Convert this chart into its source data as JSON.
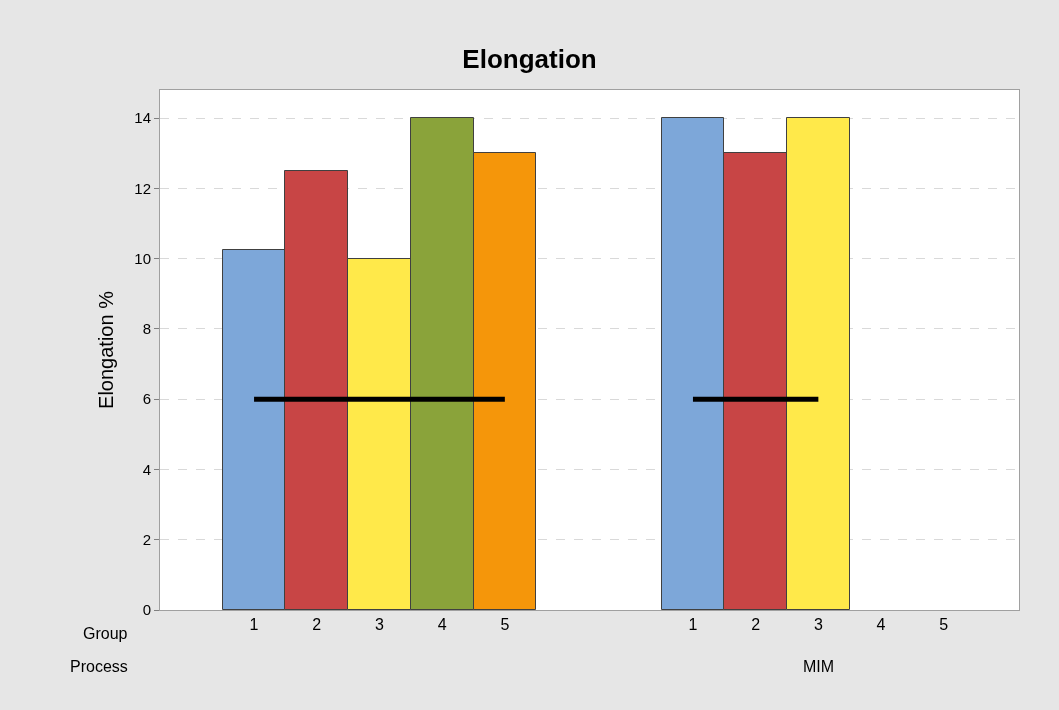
{
  "chart_data": {
    "type": "bar",
    "title": "Elongation",
    "ylabel": "Elongation %",
    "categories": [
      "1",
      "2",
      "3",
      "4",
      "5",
      null,
      null,
      "1",
      "2",
      "3",
      "4",
      "5"
    ],
    "series": [
      {
        "colors": [
          "#7da7d9",
          "#c84545",
          "#ffe94a",
          "#8aa33a",
          "#f5960a",
          null,
          null,
          "#7da7d9",
          "#c84545",
          "#ffe94a",
          null,
          null
        ],
        "values": [
          10.25,
          12.5,
          10,
          14,
          13,
          null,
          null,
          14,
          13,
          14,
          null,
          null
        ]
      },
      {
        "type": "line",
        "color": "#000000",
        "values": [
          6,
          6,
          6,
          6,
          6,
          null,
          null,
          6,
          6,
          6,
          null,
          null
        ]
      }
    ],
    "annotations": [
      "Group",
      "Process",
      "MIM"
    ],
    "ylim": [
      0,
      14.8
    ],
    "yticks": [
      0,
      2,
      4,
      6,
      8,
      10,
      12,
      14
    ],
    "grid": "y"
  }
}
